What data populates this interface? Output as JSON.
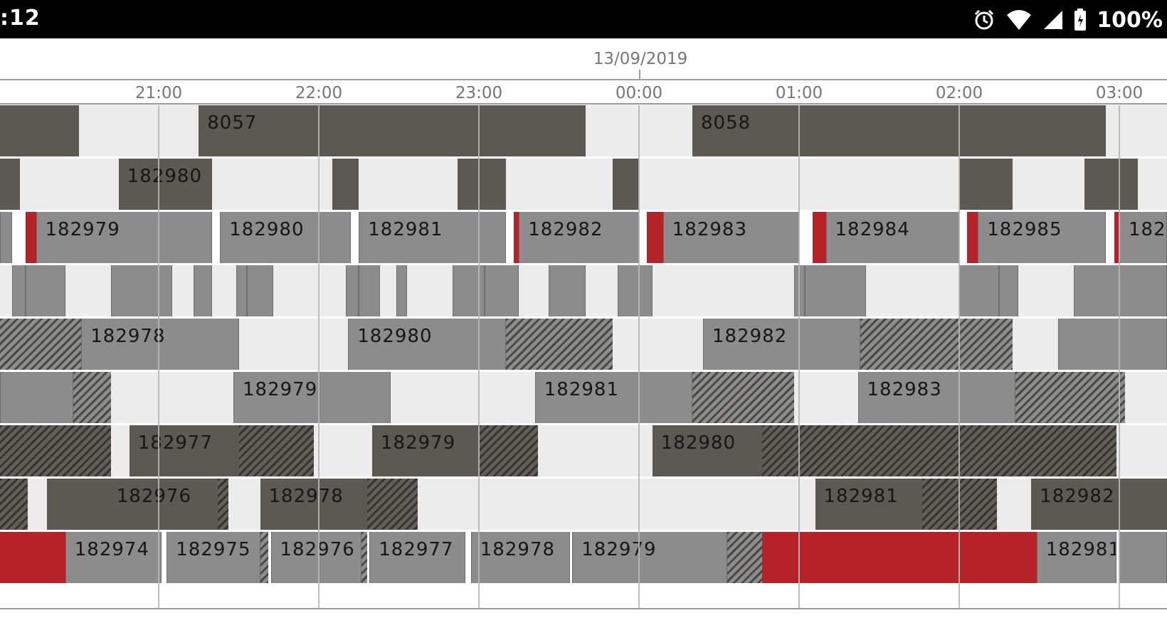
{
  "status_bar": {
    "time": ":12",
    "battery": "100%",
    "icons": [
      "alarm-icon",
      "wifi-icon",
      "signal-icon",
      "battery-icon"
    ]
  },
  "timeline": {
    "date": "13/09/2019",
    "ticks": [
      {
        "label": "21:00",
        "hour": 21
      },
      {
        "label": "22:00",
        "hour": 22
      },
      {
        "label": "23:00",
        "hour": 23
      },
      {
        "label": "00:00",
        "hour": 24
      },
      {
        "label": "01:00",
        "hour": 25
      },
      {
        "label": "02:00",
        "hour": 26
      },
      {
        "label": "03:00",
        "hour": 27
      }
    ]
  },
  "colors": {
    "dark": "#5c5852",
    "mid": "#8c8c8c",
    "light": "#ececec",
    "red": "#b52228",
    "hatched": "hatched-grey",
    "hatched_dark": "hatched-dark"
  },
  "tracks": [
    {
      "segments": [
        {
          "s": "20:00",
          "e": "20:30",
          "t": "dark"
        },
        {
          "s": "20:30",
          "e": "21:15",
          "t": "light"
        },
        {
          "s": "21:15",
          "e": "23:40",
          "t": "dark",
          "label": "8057"
        },
        {
          "s": "23:40",
          "e": "00:20",
          "t": "light"
        },
        {
          "s": "00:20",
          "e": "02:55",
          "t": "dark",
          "label": "8058"
        },
        {
          "s": "02:55",
          "e": "03:30",
          "t": "light"
        }
      ]
    },
    {
      "segments": [
        {
          "s": "20:00",
          "e": "20:08",
          "t": "dark"
        },
        {
          "s": "20:08",
          "e": "20:45",
          "t": "light"
        },
        {
          "s": "20:45",
          "e": "21:20",
          "t": "dark",
          "label": "182980"
        },
        {
          "s": "21:20",
          "e": "22:05",
          "t": "light"
        },
        {
          "s": "22:05",
          "e": "22:15",
          "t": "dark"
        },
        {
          "s": "22:15",
          "e": "22:52",
          "t": "light"
        },
        {
          "s": "22:52",
          "e": "23:10",
          "t": "dark"
        },
        {
          "s": "23:10",
          "e": "23:50",
          "t": "light"
        },
        {
          "s": "23:50",
          "e": "00:00",
          "t": "dark"
        },
        {
          "s": "00:00",
          "e": "02:00",
          "t": "light"
        },
        {
          "s": "02:00",
          "e": "02:20",
          "t": "dark"
        },
        {
          "s": "02:20",
          "e": "02:47",
          "t": "light"
        },
        {
          "s": "02:47",
          "e": "03:07",
          "t": "dark"
        },
        {
          "s": "03:07",
          "e": "03:30",
          "t": "light"
        }
      ]
    },
    {
      "segments": [
        {
          "s": "20:00",
          "e": "20:05",
          "t": "mid"
        },
        {
          "s": "20:10",
          "e": "20:14",
          "t": "red"
        },
        {
          "s": "20:14",
          "e": "21:20",
          "t": "mid",
          "label": "182979"
        },
        {
          "s": "21:23",
          "e": "22:12",
          "t": "mid",
          "label": "182980"
        },
        {
          "s": "22:15",
          "e": "23:10",
          "t": "mid",
          "label": "182981"
        },
        {
          "s": "23:13",
          "e": "23:15",
          "t": "red"
        },
        {
          "s": "23:15",
          "e": "00:00",
          "t": "mid",
          "label": "182982"
        },
        {
          "s": "00:03",
          "e": "00:09",
          "t": "red"
        },
        {
          "s": "00:09",
          "e": "01:00",
          "t": "mid",
          "label": "182983"
        },
        {
          "s": "01:05",
          "e": "01:10",
          "t": "red"
        },
        {
          "s": "01:10",
          "e": "02:00",
          "t": "mid",
          "label": "182984"
        },
        {
          "s": "02:03",
          "e": "02:07",
          "t": "red"
        },
        {
          "s": "02:07",
          "e": "02:55",
          "t": "mid",
          "label": "182985"
        },
        {
          "s": "02:58",
          "e": "03:00",
          "t": "red"
        },
        {
          "s": "03:00",
          "e": "03:30",
          "t": "mid",
          "label": "182"
        }
      ]
    },
    {
      "segments": [
        {
          "s": "20:00",
          "e": "20:05",
          "t": "light"
        },
        {
          "s": "20:05",
          "e": "20:10",
          "t": "mid"
        },
        {
          "s": "20:10",
          "e": "20:25",
          "t": "mid"
        },
        {
          "s": "20:25",
          "e": "20:42",
          "t": "light"
        },
        {
          "s": "20:42",
          "e": "21:05",
          "t": "mid"
        },
        {
          "s": "21:05",
          "e": "21:13",
          "t": "light"
        },
        {
          "s": "21:13",
          "e": "21:20",
          "t": "mid"
        },
        {
          "s": "21:20",
          "e": "21:29",
          "t": "light"
        },
        {
          "s": "21:29",
          "e": "21:33",
          "t": "mid"
        },
        {
          "s": "21:33",
          "e": "21:43",
          "t": "mid"
        },
        {
          "s": "21:43",
          "e": "22:10",
          "t": "light"
        },
        {
          "s": "22:10",
          "e": "22:15",
          "t": "mid"
        },
        {
          "s": "22:15",
          "e": "22:23",
          "t": "mid"
        },
        {
          "s": "22:23",
          "e": "22:29",
          "t": "light"
        },
        {
          "s": "22:29",
          "e": "22:33",
          "t": "mid"
        },
        {
          "s": "22:33",
          "e": "22:50",
          "t": "light"
        },
        {
          "s": "22:50",
          "e": "23:02",
          "t": "mid"
        },
        {
          "s": "23:02",
          "e": "23:15",
          "t": "mid"
        },
        {
          "s": "23:15",
          "e": "23:26",
          "t": "light"
        },
        {
          "s": "23:26",
          "e": "23:40",
          "t": "mid"
        },
        {
          "s": "23:40",
          "e": "23:52",
          "t": "light"
        },
        {
          "s": "23:52",
          "e": "00:05",
          "t": "mid"
        },
        {
          "s": "00:05",
          "e": "00:58",
          "t": "light"
        },
        {
          "s": "00:58",
          "e": "01:02",
          "t": "mid"
        },
        {
          "s": "01:02",
          "e": "01:25",
          "t": "mid"
        },
        {
          "s": "01:25",
          "e": "02:00",
          "t": "light"
        },
        {
          "s": "02:00",
          "e": "02:15",
          "t": "mid"
        },
        {
          "s": "02:15",
          "e": "02:22",
          "t": "mid"
        },
        {
          "s": "02:22",
          "e": "02:43",
          "t": "light"
        },
        {
          "s": "02:43",
          "e": "03:30",
          "t": "mid"
        }
      ]
    },
    {
      "segments": [
        {
          "s": "20:00",
          "e": "20:31",
          "t": "hatched"
        },
        {
          "s": "20:31",
          "e": "21:30",
          "t": "mid",
          "label": "182978"
        },
        {
          "s": "21:30",
          "e": "22:11",
          "t": "light"
        },
        {
          "s": "22:11",
          "e": "23:10",
          "t": "mid",
          "label": "182980"
        },
        {
          "s": "23:10",
          "e": "23:50",
          "t": "hatched"
        },
        {
          "s": "23:50",
          "e": "00:24",
          "t": "light"
        },
        {
          "s": "00:24",
          "e": "01:23",
          "t": "mid",
          "label": "182982"
        },
        {
          "s": "01:23",
          "e": "02:20",
          "t": "hatched"
        },
        {
          "s": "02:20",
          "e": "02:37",
          "t": "light"
        },
        {
          "s": "02:37",
          "e": "03:30",
          "t": "mid"
        }
      ]
    },
    {
      "segments": [
        {
          "s": "20:00",
          "e": "20:28",
          "t": "mid"
        },
        {
          "s": "20:28",
          "e": "20:42",
          "t": "hatched"
        },
        {
          "s": "20:42",
          "e": "21:28",
          "t": "light"
        },
        {
          "s": "21:28",
          "e": "22:27",
          "t": "mid",
          "label": "182979"
        },
        {
          "s": "22:27",
          "e": "23:21",
          "t": "light"
        },
        {
          "s": "23:21",
          "e": "00:20",
          "t": "mid",
          "label": "182981"
        },
        {
          "s": "00:20",
          "e": "00:58",
          "t": "hatched"
        },
        {
          "s": "00:58",
          "e": "01:22",
          "t": "light"
        },
        {
          "s": "01:22",
          "e": "02:21",
          "t": "mid",
          "label": "182983"
        },
        {
          "s": "02:21",
          "e": "03:02",
          "t": "hatched"
        },
        {
          "s": "03:02",
          "e": "03:30",
          "t": "light"
        }
      ]
    },
    {
      "segments": [
        {
          "s": "20:00",
          "e": "20:42",
          "t": "hatched_dark"
        },
        {
          "s": "20:42",
          "e": "20:49",
          "t": "light"
        },
        {
          "s": "20:49",
          "e": "21:30",
          "t": "dark",
          "label": "182977"
        },
        {
          "s": "21:30",
          "e": "21:58",
          "t": "hatched_dark"
        },
        {
          "s": "21:58",
          "e": "22:20",
          "t": "light"
        },
        {
          "s": "22:20",
          "e": "23:00",
          "t": "dark",
          "label": "182979"
        },
        {
          "s": "23:00",
          "e": "23:22",
          "t": "hatched_dark"
        },
        {
          "s": "23:22",
          "e": "00:05",
          "t": "light"
        },
        {
          "s": "00:05",
          "e": "00:46",
          "t": "dark",
          "label": "182980"
        },
        {
          "s": "00:46",
          "e": "02:59",
          "t": "hatched_dark"
        },
        {
          "s": "02:59",
          "e": "03:30",
          "t": "light"
        }
      ]
    },
    {
      "segments": [
        {
          "s": "20:00",
          "e": "20:11",
          "t": "hatched_dark"
        },
        {
          "s": "20:11",
          "e": "20:18",
          "t": "light"
        },
        {
          "s": "20:18",
          "e": "20:41",
          "t": "dark"
        },
        {
          "s": "20:41",
          "e": "21:22",
          "t": "dark",
          "label": "182976"
        },
        {
          "s": "21:22",
          "e": "21:26",
          "t": "hatched_dark"
        },
        {
          "s": "21:26",
          "e": "21:38",
          "t": "light"
        },
        {
          "s": "21:38",
          "e": "22:18",
          "t": "dark",
          "label": "182978"
        },
        {
          "s": "22:18",
          "e": "22:37",
          "t": "hatched_dark"
        },
        {
          "s": "22:37",
          "e": "22:47",
          "t": "light"
        },
        {
          "s": "22:47",
          "e": "01:06",
          "t": "light"
        },
        {
          "s": "01:06",
          "e": "01:46",
          "t": "dark",
          "label": "182981"
        },
        {
          "s": "01:46",
          "e": "02:14",
          "t": "hatched_dark"
        },
        {
          "s": "02:14",
          "e": "02:27",
          "t": "light"
        },
        {
          "s": "02:27",
          "e": "03:30",
          "t": "dark",
          "label": "182982"
        }
      ]
    },
    {
      "segments": [
        {
          "s": "20:00",
          "e": "20:25",
          "t": "red"
        },
        {
          "s": "20:25",
          "e": "21:01",
          "t": "mid",
          "label": "182974"
        },
        {
          "s": "21:03",
          "e": "21:38",
          "t": "mid",
          "label": "182975"
        },
        {
          "s": "21:38",
          "e": "21:41",
          "t": "hatched"
        },
        {
          "s": "21:42",
          "e": "22:16",
          "t": "mid",
          "label": "182976"
        },
        {
          "s": "22:16",
          "e": "22:18",
          "t": "hatched"
        },
        {
          "s": "22:19",
          "e": "22:55",
          "t": "mid",
          "label": "182977"
        },
        {
          "s": "22:57",
          "e": "23:34",
          "t": "mid",
          "label": "182978"
        },
        {
          "s": "23:35",
          "e": "00:33",
          "t": "mid",
          "label": "182979"
        },
        {
          "s": "00:33",
          "e": "00:46",
          "t": "hatched"
        },
        {
          "s": "00:46",
          "e": "02:29",
          "t": "red"
        },
        {
          "s": "02:29",
          "e": "02:59",
          "t": "mid",
          "label": "182981"
        },
        {
          "s": "03:00",
          "e": "03:30",
          "t": "mid"
        }
      ]
    }
  ]
}
